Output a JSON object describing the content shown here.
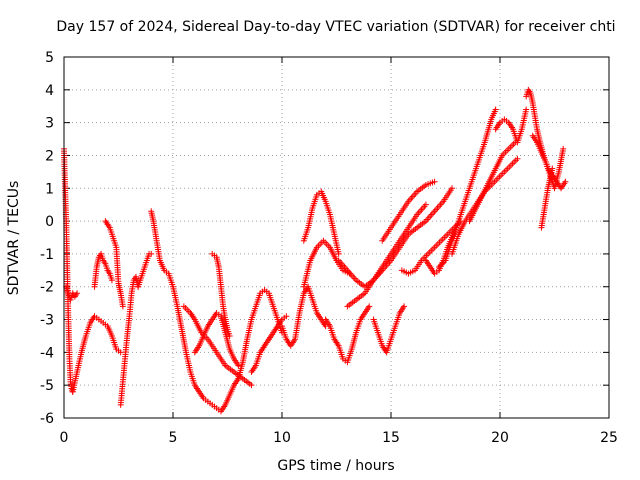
{
  "chart_data": {
    "type": "scatter",
    "title": "Day 157 of 2024, Sidereal Day-to-day VTEC variation (SDTVAR) for receiver chti",
    "xlabel": "GPS time / hours",
    "ylabel": "SDTVAR / TECUs",
    "xlim": [
      0,
      25
    ],
    "ylim": [
      -6,
      5
    ],
    "x_ticks": [
      0,
      5,
      10,
      15,
      20,
      25
    ],
    "y_ticks": [
      -6,
      -5,
      -4,
      -3,
      -2,
      -1,
      0,
      1,
      2,
      3,
      4,
      5
    ],
    "grid": true,
    "marker": "plus",
    "color": "#ff0000",
    "tracks": [
      {
        "x": [
          0.0,
          0.05,
          0.1,
          0.15,
          0.2,
          0.25,
          0.3,
          0.35,
          0.4
        ],
        "y": [
          2.2,
          1.0,
          0.0,
          -1.5,
          -3.0,
          -4.2,
          -4.9,
          -5.1,
          -5.2
        ]
      },
      {
        "x": [
          0.1,
          0.2,
          0.3,
          0.4,
          0.5,
          0.6
        ],
        "y": [
          -2.0,
          -2.2,
          -2.4,
          -2.2,
          -2.3,
          -2.2
        ]
      },
      {
        "x": [
          0.4,
          0.6,
          0.8,
          1.0,
          1.2,
          1.4,
          1.6,
          1.8,
          2.0,
          2.2,
          2.4,
          2.6
        ],
        "y": [
          -5.2,
          -4.6,
          -4.0,
          -3.5,
          -3.1,
          -2.9,
          -3.0,
          -3.1,
          -3.2,
          -3.5,
          -3.9,
          -4.0
        ]
      },
      {
        "x": [
          1.4,
          1.5,
          1.6,
          1.7,
          1.8,
          1.9,
          2.0,
          2.1,
          2.2
        ],
        "y": [
          -2.0,
          -1.4,
          -1.1,
          -1.0,
          -1.2,
          -1.3,
          -1.5,
          -1.6,
          -1.8
        ]
      },
      {
        "x": [
          1.9,
          2.0,
          2.1,
          2.2,
          2.3,
          2.4,
          2.5,
          2.6,
          2.7
        ],
        "y": [
          0.0,
          -0.1,
          -0.2,
          -0.4,
          -0.6,
          -0.8,
          -1.9,
          -2.2,
          -2.6
        ]
      },
      {
        "x": [
          2.6,
          2.7,
          2.8,
          2.9,
          3.0,
          3.1,
          3.2,
          3.3,
          3.4
        ],
        "y": [
          -5.6,
          -4.9,
          -4.2,
          -3.5,
          -2.9,
          -2.2,
          -1.8,
          -1.7,
          -2.0
        ]
      },
      {
        "x": [
          3.4,
          3.5,
          3.6,
          3.7,
          3.8,
          3.9,
          4.0
        ],
        "y": [
          -2.0,
          -1.8,
          -1.6,
          -1.4,
          -1.2,
          -1.0,
          -1.0
        ]
      },
      {
        "x": [
          4.0,
          4.1,
          4.2,
          4.3,
          4.4,
          4.6,
          4.8,
          5.0,
          5.2,
          5.4,
          5.6,
          5.8,
          6.0,
          6.2,
          6.4,
          6.6,
          6.8,
          7.0,
          7.2,
          7.4,
          7.6,
          7.8,
          8.0
        ],
        "y": [
          0.3,
          0.0,
          -0.4,
          -0.8,
          -1.2,
          -1.5,
          -1.6,
          -2.0,
          -2.6,
          -3.3,
          -4.0,
          -4.6,
          -5.0,
          -5.2,
          -5.4,
          -5.5,
          -5.6,
          -5.7,
          -5.8,
          -5.6,
          -5.3,
          -5.0,
          -4.8
        ]
      },
      {
        "x": [
          5.5,
          5.8,
          6.0,
          6.3,
          6.6,
          7.0,
          7.4,
          7.8,
          8.2,
          8.6
        ],
        "y": [
          -2.6,
          -2.8,
          -3.0,
          -3.4,
          -3.6,
          -4.0,
          -4.4,
          -4.6,
          -4.8,
          -5.0
        ]
      },
      {
        "x": [
          6.0,
          6.2,
          6.4,
          6.6,
          6.8,
          7.0,
          7.2,
          7.4,
          7.6,
          7.8,
          8.0
        ],
        "y": [
          -4.0,
          -3.8,
          -3.5,
          -3.2,
          -3.0,
          -2.8,
          -2.9,
          -3.4,
          -3.9,
          -4.2,
          -4.4
        ]
      },
      {
        "x": [
          6.8,
          7.0,
          7.1,
          7.2,
          7.3,
          7.4,
          7.5,
          7.6
        ],
        "y": [
          -1.0,
          -1.1,
          -1.4,
          -2.0,
          -2.6,
          -3.0,
          -3.3,
          -3.5
        ]
      },
      {
        "x": [
          8.0,
          8.2,
          8.4,
          8.6,
          8.8,
          9.0,
          9.2,
          9.4,
          9.6,
          9.8,
          10.0
        ],
        "y": [
          -4.8,
          -4.3,
          -3.6,
          -3.0,
          -2.6,
          -2.2,
          -2.1,
          -2.2,
          -2.6,
          -3.0,
          -3.4
        ]
      },
      {
        "x": [
          8.6,
          8.8,
          9.0,
          9.2,
          9.4,
          9.6,
          9.8,
          10.0,
          10.2
        ],
        "y": [
          -4.6,
          -4.4,
          -4.0,
          -3.8,
          -3.6,
          -3.4,
          -3.2,
          -3.0,
          -2.9
        ]
      },
      {
        "x": [
          10.0,
          10.2,
          10.4,
          10.6,
          10.8,
          11.0,
          11.2,
          11.4,
          11.6,
          11.8,
          12.0
        ],
        "y": [
          -3.2,
          -3.6,
          -3.8,
          -3.6,
          -2.8,
          -2.2,
          -2.0,
          -2.4,
          -2.8,
          -3.0,
          -3.2
        ]
      },
      {
        "x": [
          11.0,
          11.2,
          11.4,
          11.6,
          11.8,
          12.0,
          12.2,
          12.4,
          12.6
        ],
        "y": [
          -0.6,
          -0.2,
          0.4,
          0.8,
          0.9,
          0.6,
          0.2,
          -0.4,
          -1.0
        ]
      },
      {
        "x": [
          11.0,
          11.3,
          11.6,
          11.9,
          12.2,
          12.5,
          12.8,
          13.1
        ],
        "y": [
          -2.0,
          -1.2,
          -0.8,
          -0.6,
          -0.8,
          -1.2,
          -1.5,
          -1.6
        ]
      },
      {
        "x": [
          12.0,
          12.2,
          12.4,
          12.6,
          12.8,
          13.0,
          13.2,
          13.4,
          13.6,
          13.8,
          14.0
        ],
        "y": [
          -3.0,
          -3.2,
          -3.6,
          -3.8,
          -4.2,
          -4.3,
          -3.9,
          -3.4,
          -3.0,
          -2.8,
          -2.6
        ]
      },
      {
        "x": [
          12.6,
          13.0,
          13.4,
          13.8,
          14.2,
          14.6,
          15.0,
          15.4,
          15.8,
          16.2,
          16.6,
          17.0,
          17.4,
          17.8
        ],
        "y": [
          -1.2,
          -1.5,
          -1.8,
          -2.0,
          -1.8,
          -1.5,
          -1.2,
          -0.8,
          -0.4,
          -0.2,
          0.0,
          0.3,
          0.6,
          1.0
        ]
      },
      {
        "x": [
          13.0,
          13.4,
          13.8,
          14.2,
          14.6,
          15.0,
          15.4,
          15.8,
          16.2,
          16.6
        ],
        "y": [
          -2.6,
          -2.4,
          -2.2,
          -1.8,
          -1.4,
          -1.0,
          -0.6,
          -0.2,
          0.2,
          0.5
        ]
      },
      {
        "x": [
          14.2,
          14.4,
          14.6,
          14.8,
          15.0,
          15.2,
          15.4,
          15.6
        ],
        "y": [
          -3.0,
          -3.4,
          -3.8,
          -4.0,
          -3.6,
          -3.2,
          -2.8,
          -2.6
        ]
      },
      {
        "x": [
          14.6,
          15.0,
          15.4,
          15.8,
          16.2,
          16.6,
          17.0
        ],
        "y": [
          -0.6,
          -0.2,
          0.2,
          0.6,
          0.9,
          1.1,
          1.2
        ]
      },
      {
        "x": [
          15.5,
          15.8,
          16.1,
          16.4,
          16.7,
          17.0,
          17.3,
          17.6,
          17.9,
          18.2
        ],
        "y": [
          -1.5,
          -1.6,
          -1.5,
          -1.2,
          -1.0,
          -0.8,
          -0.6,
          -0.4,
          -0.2,
          0.0
        ]
      },
      {
        "x": [
          16.6,
          16.8,
          17.0,
          17.2,
          17.4,
          17.6,
          17.8,
          18.0
        ],
        "y": [
          -1.2,
          -1.4,
          -1.6,
          -1.5,
          -1.2,
          -0.8,
          -0.5,
          -0.2
        ]
      },
      {
        "x": [
          17.2,
          17.5,
          17.8,
          18.1,
          18.4,
          18.7,
          19.0,
          19.3,
          19.6,
          19.8
        ],
        "y": [
          -1.4,
          -1.2,
          -0.6,
          0.0,
          0.6,
          1.2,
          1.8,
          2.4,
          3.1,
          3.4
        ]
      },
      {
        "x": [
          17.8,
          18.1,
          18.4,
          18.7,
          19.0,
          19.3,
          19.6,
          19.9,
          20.2,
          20.5,
          20.8
        ],
        "y": [
          -1.0,
          -0.4,
          0.0,
          0.3,
          0.6,
          0.9,
          1.1,
          1.3,
          1.5,
          1.7,
          1.9
        ]
      },
      {
        "x": [
          18.6,
          18.9,
          19.2,
          19.5,
          19.8,
          20.1,
          20.4,
          20.7
        ],
        "y": [
          0.0,
          0.4,
          0.8,
          1.2,
          1.6,
          2.0,
          2.2,
          2.4
        ]
      },
      {
        "x": [
          19.8,
          20.0,
          20.2,
          20.4,
          20.6,
          20.8,
          21.0,
          21.2
        ],
        "y": [
          2.8,
          3.0,
          3.1,
          3.0,
          2.8,
          2.4,
          2.8,
          3.4
        ]
      },
      {
        "x": [
          21.2,
          21.3,
          21.4,
          21.5,
          21.6,
          21.7,
          21.8,
          22.0,
          22.2,
          22.4,
          22.6,
          22.8,
          23.0
        ],
        "y": [
          3.8,
          4.0,
          3.9,
          3.6,
          3.2,
          2.8,
          2.5,
          2.0,
          1.6,
          1.4,
          1.2,
          1.0,
          1.2
        ]
      },
      {
        "x": [
          21.5,
          21.7,
          21.9,
          22.1,
          22.3,
          22.5,
          22.7,
          22.9
        ],
        "y": [
          2.6,
          2.4,
          2.1,
          1.8,
          1.4,
          1.0,
          1.5,
          2.2
        ]
      },
      {
        "x": [
          21.9,
          22.0,
          22.1,
          22.2,
          22.3,
          22.4
        ],
        "y": [
          -0.2,
          0.2,
          0.6,
          1.0,
          1.3,
          1.6
        ]
      }
    ]
  }
}
